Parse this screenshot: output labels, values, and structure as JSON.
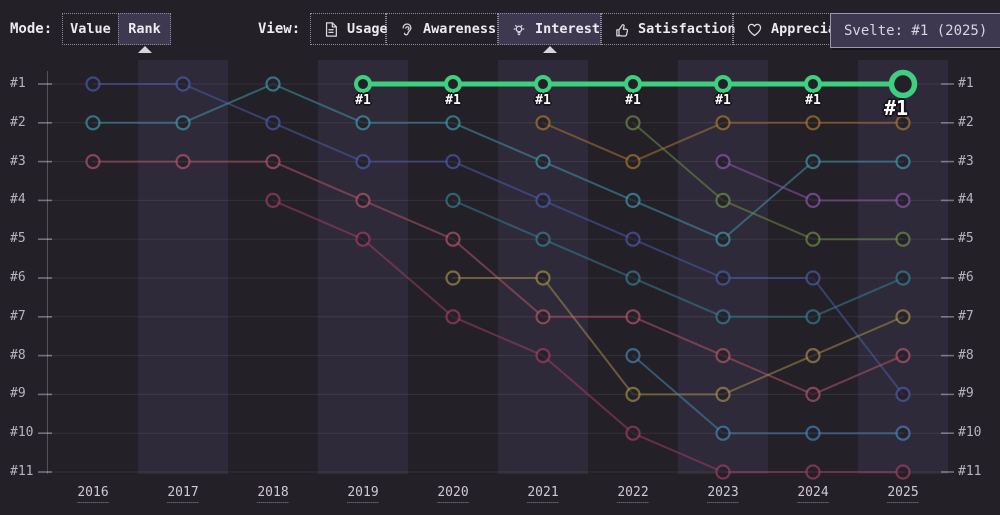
{
  "toolbar": {
    "mode_label": "Mode:",
    "mode_options": [
      {
        "label": "Value",
        "selected": false
      },
      {
        "label": "Rank",
        "selected": true
      }
    ],
    "view_label": "View:",
    "view_options": [
      {
        "label": "Usage",
        "icon": "document-icon",
        "selected": false
      },
      {
        "label": "Awareness",
        "icon": "ear-icon",
        "selected": false
      },
      {
        "label": "Interest",
        "icon": "lightbulb-icon",
        "selected": true
      },
      {
        "label": "Satisfaction",
        "icon": "thumbs-up-icon",
        "selected": false
      },
      {
        "label": "Appreciation",
        "icon": "heart-icon",
        "selected": false
      }
    ]
  },
  "tooltip": {
    "text": "Svelte: #1 (2025)"
  },
  "colors": {
    "background": "#242028",
    "band": "#2e2a39",
    "selected_bg": "#3e3950",
    "accent_green": "#3ecf7f",
    "grid": "rgba(255,255,255,0.08)",
    "axis": "rgba(255,255,255,0.22)",
    "tick": "rgba(215,210,225,0.45)"
  },
  "chart_data": {
    "type": "line",
    "subtype": "bump-rank-chart",
    "x": [
      2016,
      2017,
      2018,
      2019,
      2020,
      2021,
      2022,
      2023,
      2024,
      2025
    ],
    "rank_axis_labels": [
      "#1",
      "#2",
      "#3",
      "#4",
      "#5",
      "#6",
      "#7",
      "#8",
      "#9",
      "#10",
      "#11"
    ],
    "ylim": [
      1,
      11
    ],
    "grid": "horizontal",
    "legend_position": "none",
    "alternating_year_bands": [
      2017,
      2019,
      2021,
      2023,
      2025
    ],
    "highlighted_series": "Svelte",
    "series": [
      {
        "id": "indigo",
        "color": "#4a5aaa",
        "highlight": false,
        "ranks": [
          1,
          1,
          2,
          3,
          3,
          4,
          5,
          6,
          6,
          9
        ]
      },
      {
        "id": "teal",
        "color": "#3f96a8",
        "highlight": false,
        "ranks": [
          2,
          2,
          1,
          2,
          2,
          3,
          4,
          5,
          3,
          3
        ]
      },
      {
        "id": "rose",
        "color": "#b05468",
        "highlight": false,
        "ranks": [
          3,
          3,
          3,
          4,
          5,
          7,
          7,
          8,
          9,
          8
        ]
      },
      {
        "id": "crimson",
        "color": "#9e3d63",
        "highlight": false,
        "ranks": [
          null,
          null,
          4,
          5,
          7,
          8,
          10,
          11,
          11,
          11
        ]
      },
      {
        "id": "dark-teal",
        "color": "#357e90",
        "highlight": false,
        "ranks": [
          null,
          null,
          null,
          null,
          4,
          5,
          6,
          7,
          7,
          6
        ]
      },
      {
        "id": "olive",
        "color": "#a08c48",
        "highlight": false,
        "ranks": [
          null,
          null,
          null,
          null,
          6,
          6,
          9,
          9,
          8,
          7
        ]
      },
      {
        "id": "amber",
        "color": "#a8762f",
        "highlight": false,
        "ranks": [
          null,
          null,
          null,
          null,
          null,
          2,
          3,
          2,
          2,
          2
        ]
      },
      {
        "id": "moss-green",
        "color": "#6c8c45",
        "highlight": false,
        "ranks": [
          null,
          null,
          null,
          null,
          null,
          null,
          2,
          4,
          5,
          5
        ]
      },
      {
        "id": "steel-blue",
        "color": "#4583b2",
        "highlight": false,
        "ranks": [
          null,
          null,
          null,
          null,
          null,
          null,
          8,
          10,
          10,
          10
        ]
      },
      {
        "id": "violet",
        "color": "#8c55a8",
        "highlight": false,
        "ranks": [
          null,
          null,
          null,
          null,
          null,
          null,
          null,
          3,
          4,
          4
        ]
      },
      {
        "id": "Svelte",
        "color": "#3ecf7f",
        "highlight": true,
        "ranks": [
          null,
          null,
          null,
          1,
          1,
          1,
          1,
          1,
          1,
          1
        ]
      }
    ]
  }
}
